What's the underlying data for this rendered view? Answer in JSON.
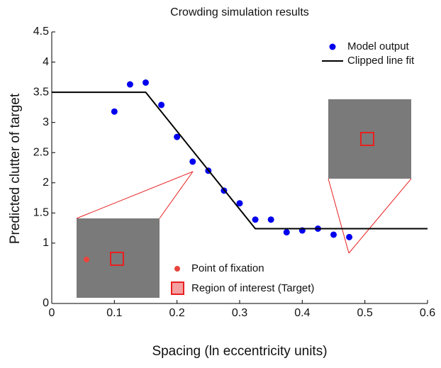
{
  "chart_data": {
    "type": "scatter-line",
    "title": "Crowding simulation results",
    "x_label": "Spacing (ln eccentricity units)",
    "y_label": "Predicted clutter of target",
    "xlim": [
      0,
      0.6
    ],
    "xticks": [
      0,
      0.1,
      0.2,
      0.3,
      0.4,
      0.5,
      0.6
    ],
    "ylim": [
      0,
      4.5
    ],
    "yticks": [
      0,
      1,
      1.5,
      2,
      2.5,
      3,
      3.5,
      4,
      4.5
    ],
    "legend": "top-right",
    "series": [
      {
        "name": "Model output",
        "color": "#0000ee",
        "kind": "scatter",
        "x": [
          0.1,
          0.125,
          0.15,
          0.175,
          0.2,
          0.225,
          0.25,
          0.275,
          0.3,
          0.325,
          0.35,
          0.375,
          0.4,
          0.425,
          0.45,
          0.475
        ],
        "values": [
          3.18,
          3.63,
          3.66,
          3.29,
          2.76,
          2.35,
          2.2,
          1.87,
          1.66,
          1.39,
          1.39,
          1.18,
          1.21,
          1.24,
          1.14,
          1.1
        ]
      },
      {
        "name": "Clipped line fit",
        "color": "#000000",
        "kind": "line",
        "x": [
          0,
          0.15,
          0.325,
          0.6
        ],
        "values": [
          3.5,
          3.5,
          1.24,
          1.24
        ]
      }
    ],
    "annotations": [
      "Point of fixation",
      "Region of interest (Target)"
    ]
  }
}
